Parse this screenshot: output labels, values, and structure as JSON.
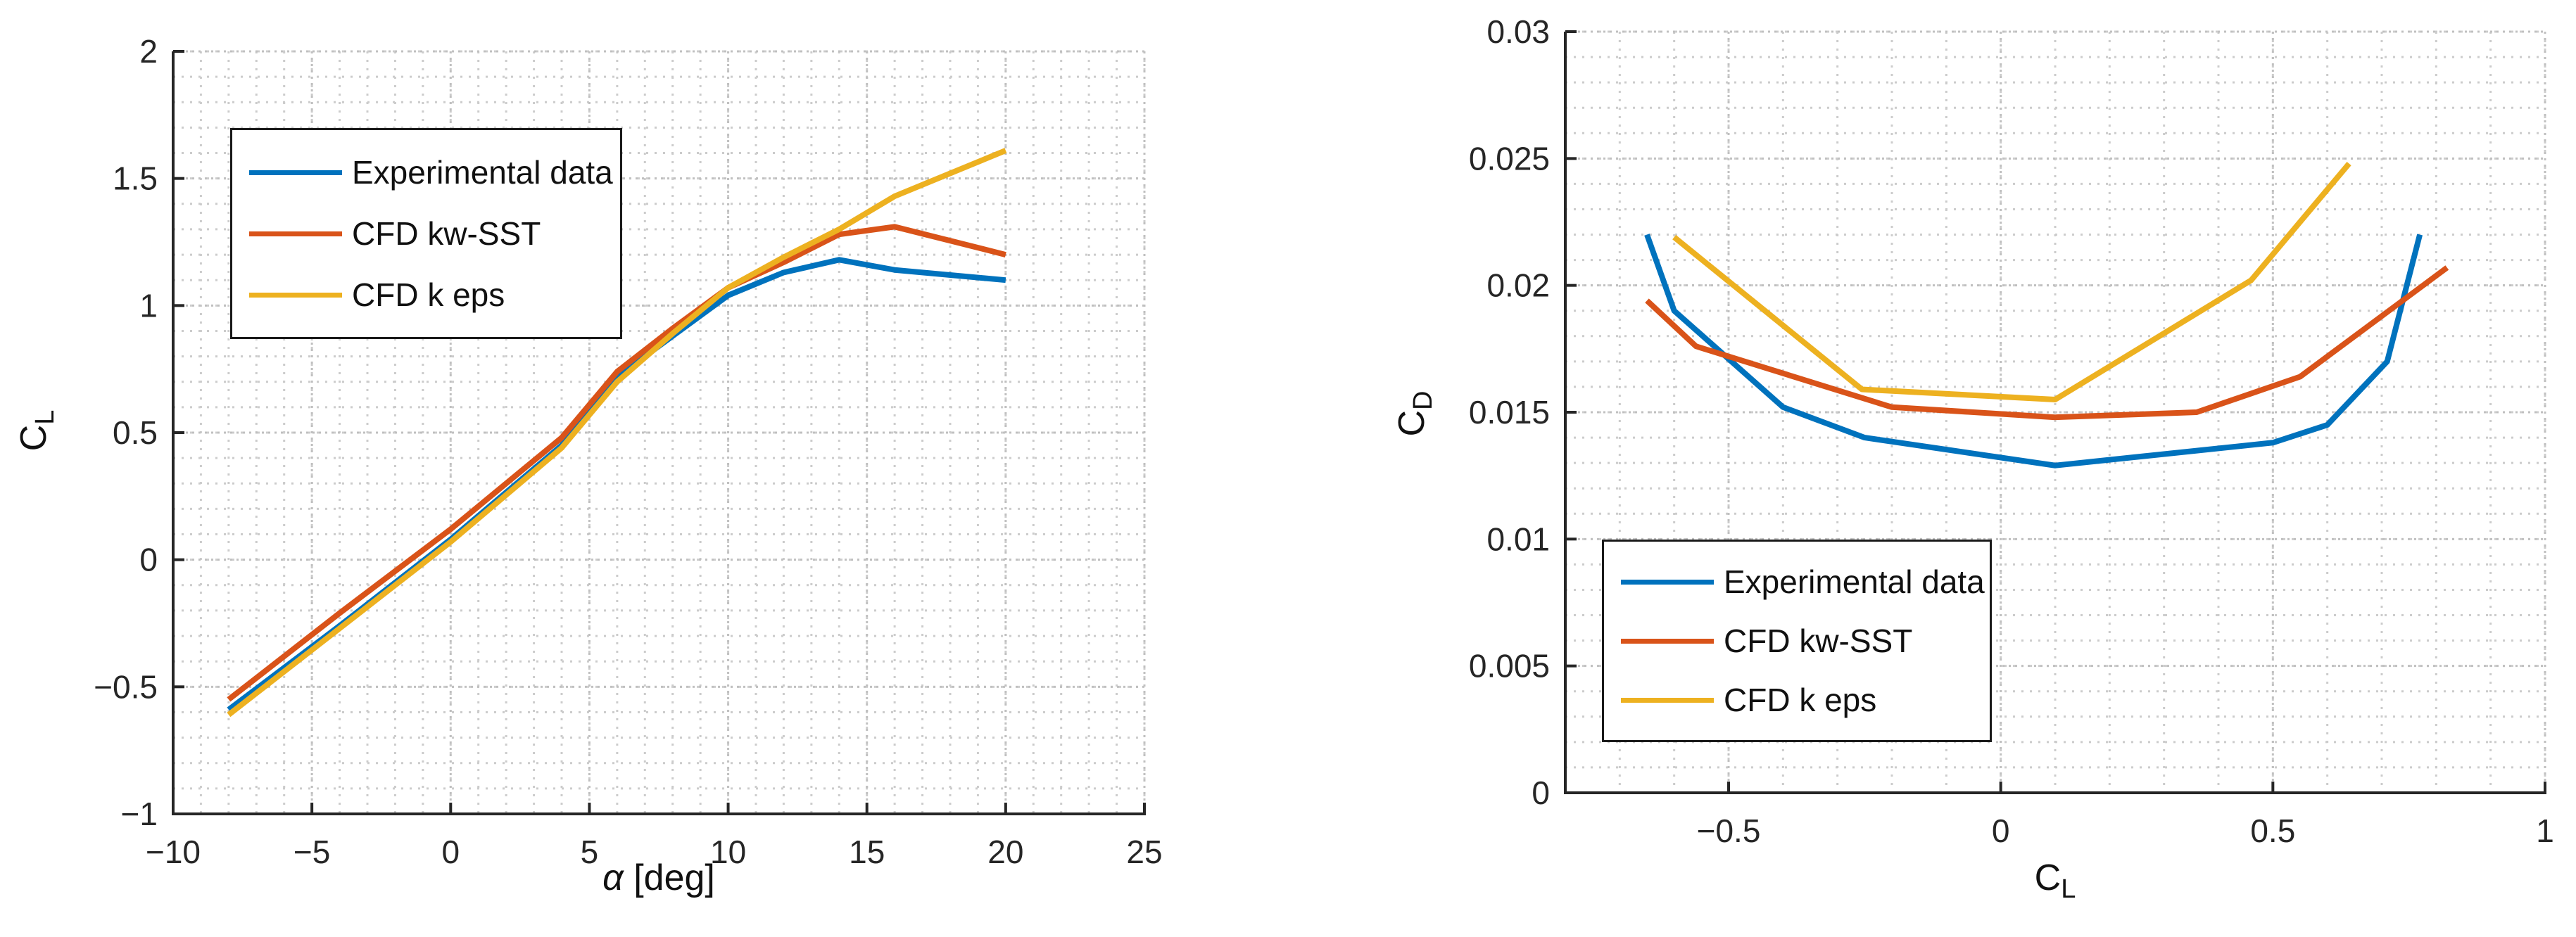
{
  "figure": {
    "background": "#ffffff"
  },
  "colors": {
    "axis": "#262626",
    "text": "#111111",
    "grid_minor": "#cccccc",
    "grid_major": "#c0c0c0",
    "experimental": "#0072BD",
    "cfd_kw_sst": "#D95319",
    "cfd_k_eps": "#EDB120"
  },
  "chart_data": [
    {
      "id": "lift-curve",
      "type": "line",
      "xlabel_symbol": "α",
      "xlabel_unit": " [deg]",
      "ylabel_base": "C",
      "ylabel_sub": "L",
      "xlim": [
        -10,
        25
      ],
      "ylim": [
        -1,
        2
      ],
      "xticks": [
        -10,
        -5,
        0,
        5,
        10,
        15,
        20,
        25
      ],
      "yticks": [
        -1,
        -0.5,
        0,
        0.5,
        1,
        1.5,
        2
      ],
      "xtick_labels": [
        "−10",
        "−5",
        "0",
        "5",
        "10",
        "15",
        "20",
        "25"
      ],
      "ytick_labels": [
        "−1",
        "−0.5",
        "0",
        "0.5",
        "1",
        "1.5",
        "2"
      ],
      "minor_x": 1,
      "minor_y": 0.1,
      "grid": "minor-dotted",
      "legend_position": "top-left",
      "series": [
        {
          "name": "Experimental data",
          "color": "#0072BD",
          "x": [
            -8,
            -4,
            0,
            4,
            6,
            8,
            10,
            12,
            14,
            16,
            20
          ],
          "y": [
            -0.59,
            -0.26,
            0.08,
            0.45,
            0.72,
            0.88,
            1.04,
            1.13,
            1.18,
            1.14,
            1.1
          ]
        },
        {
          "name": "CFD kw-SST",
          "color": "#D95319",
          "x": [
            -8,
            -4,
            0,
            4,
            6,
            8,
            10,
            12,
            14,
            16,
            20
          ],
          "y": [
            -0.55,
            -0.21,
            0.12,
            0.48,
            0.74,
            0.91,
            1.07,
            1.17,
            1.28,
            1.31,
            1.2
          ]
        },
        {
          "name": "CFD k eps",
          "color": "#EDB120",
          "x": [
            -8,
            -4,
            0,
            4,
            6,
            8,
            10,
            12,
            14,
            16,
            20
          ],
          "y": [
            -0.61,
            -0.27,
            0.07,
            0.44,
            0.7,
            0.89,
            1.07,
            1.19,
            1.3,
            1.43,
            1.61
          ]
        }
      ]
    },
    {
      "id": "drag-polar",
      "type": "line",
      "xlabel_base": "C",
      "xlabel_sub": "L",
      "ylabel_base": "C",
      "ylabel_sub": "D",
      "xlim": [
        -0.8,
        1
      ],
      "ylim": [
        0,
        0.03
      ],
      "xticks": [
        -0.5,
        0,
        0.5,
        1
      ],
      "yticks": [
        0,
        0.005,
        0.01,
        0.015,
        0.02,
        0.025,
        0.03
      ],
      "xtick_labels": [
        "−0.5",
        "0",
        "0.5",
        "1"
      ],
      "ytick_labels": [
        "0",
        "0.005",
        "0.01",
        "0.015",
        "0.02",
        "0.025",
        "0.03"
      ],
      "minor_x": 0.1,
      "minor_y": 0.001,
      "grid": "minor-dotted",
      "legend_position": "bottom-left",
      "series": [
        {
          "name": "Experimental data",
          "color": "#0072BD",
          "x": [
            -0.65,
            -0.6,
            -0.4,
            -0.25,
            0.1,
            0.5,
            0.6,
            0.71,
            0.77
          ],
          "y": [
            0.022,
            0.019,
            0.0152,
            0.014,
            0.0129,
            0.0138,
            0.0145,
            0.017,
            0.022
          ]
        },
        {
          "name": "CFD kw-SST",
          "color": "#D95319",
          "x": [
            -0.65,
            -0.56,
            -0.2,
            0.1,
            0.36,
            0.55,
            0.82
          ],
          "y": [
            0.0194,
            0.0176,
            0.0152,
            0.0148,
            0.015,
            0.0164,
            0.0207
          ]
        },
        {
          "name": "CFD k eps",
          "color": "#EDB120",
          "x": [
            -0.6,
            -0.255,
            0.1,
            0.46,
            0.64
          ],
          "y": [
            0.0219,
            0.0159,
            0.0155,
            0.0202,
            0.0248
          ]
        }
      ]
    }
  ]
}
